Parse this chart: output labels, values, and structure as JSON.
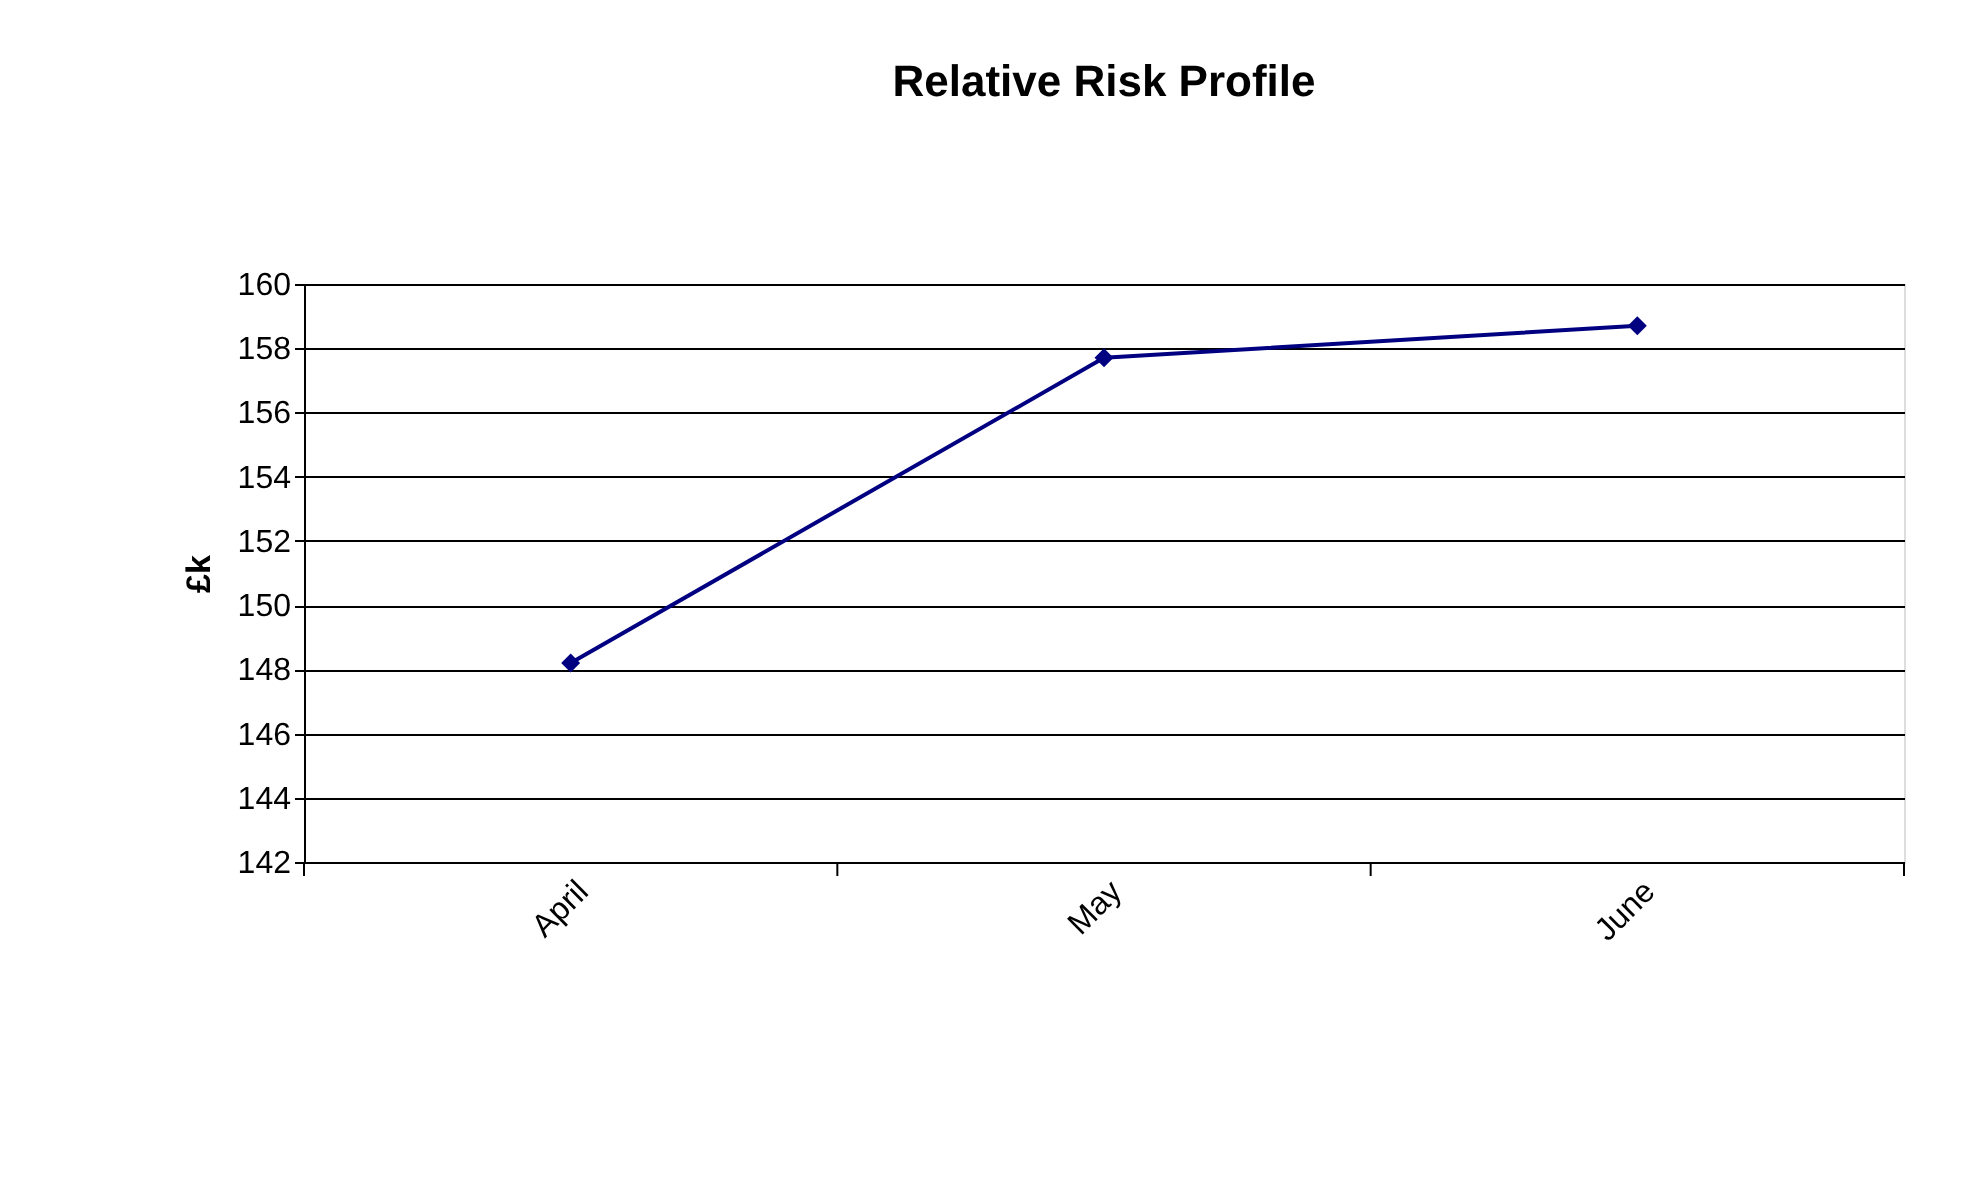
{
  "chart_data": {
    "type": "line",
    "title": "Relative Risk Profile",
    "ylabel": "£k",
    "categories": [
      "April",
      "May",
      "June"
    ],
    "series": [
      {
        "color": "#000080",
        "values": [
          148.2,
          157.7,
          158.7
        ]
      }
    ],
    "ylim": [
      142,
      160
    ],
    "yticks": [
      142,
      144,
      146,
      148,
      150,
      152,
      154,
      156,
      158,
      160
    ],
    "grid": "y",
    "marker": "diamond",
    "line_style": "solid"
  }
}
